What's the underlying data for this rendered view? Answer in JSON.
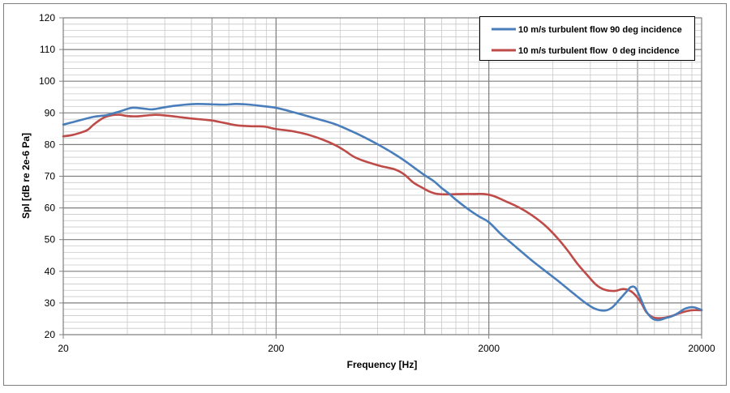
{
  "chart_data": {
    "type": "line",
    "title": "",
    "xlabel": "Frequency [Hz]",
    "ylabel": "Spl [dB re 2e-6 Pa]",
    "x_scale": "log",
    "xlim": [
      20,
      20000
    ],
    "ylim": [
      20,
      120
    ],
    "x_tick_labels": [
      "20",
      "200",
      "2000",
      "20000"
    ],
    "x_ticks": [
      20,
      200,
      2000,
      20000
    ],
    "y_ticks": [
      20,
      30,
      40,
      50,
      60,
      70,
      80,
      90,
      100,
      110,
      120
    ],
    "grid": true,
    "legend_position": "top-right",
    "series": [
      {
        "name": "10 m/s turbulent flow 90 deg incidence",
        "color": "#4a7ebb",
        "points": [
          [
            20,
            86.3
          ],
          [
            22,
            87
          ],
          [
            25,
            88
          ],
          [
            28,
            88.8
          ],
          [
            32,
            89.3
          ],
          [
            37,
            90.5
          ],
          [
            42,
            91.6
          ],
          [
            47,
            91.4
          ],
          [
            52,
            91.1
          ],
          [
            58,
            91.6
          ],
          [
            66,
            92.2
          ],
          [
            75,
            92.6
          ],
          [
            85,
            92.8
          ],
          [
            100,
            92.7
          ],
          [
            115,
            92.6
          ],
          [
            130,
            92.8
          ],
          [
            150,
            92.6
          ],
          [
            175,
            92.1
          ],
          [
            200,
            91.6
          ],
          [
            230,
            90.6
          ],
          [
            270,
            89.3
          ],
          [
            320,
            87.9
          ],
          [
            380,
            86.4
          ],
          [
            450,
            84.3
          ],
          [
            520,
            82.3
          ],
          [
            600,
            80.1
          ],
          [
            700,
            77.5
          ],
          [
            800,
            75
          ],
          [
            900,
            72.5
          ],
          [
            1000,
            70.3
          ],
          [
            1100,
            68.5
          ],
          [
            1200,
            66.3
          ],
          [
            1300,
            64.5
          ],
          [
            1400,
            62.6
          ],
          [
            1600,
            59.6
          ],
          [
            1800,
            57.3
          ],
          [
            2000,
            55.5
          ],
          [
            2300,
            51.5
          ],
          [
            2700,
            47.5
          ],
          [
            3200,
            43.3
          ],
          [
            3700,
            40
          ],
          [
            4300,
            36.6
          ],
          [
            5000,
            33
          ],
          [
            5700,
            30
          ],
          [
            6300,
            28.2
          ],
          [
            7000,
            27.6
          ],
          [
            7600,
            28.6
          ],
          [
            8200,
            31
          ],
          [
            8800,
            33.3
          ],
          [
            9300,
            35
          ],
          [
            9800,
            34.7
          ],
          [
            10400,
            31
          ],
          [
            11000,
            27.3
          ],
          [
            11800,
            25
          ],
          [
            12600,
            24.6
          ],
          [
            13500,
            25.2
          ],
          [
            14500,
            25.8
          ],
          [
            15500,
            26.8
          ],
          [
            16500,
            28
          ],
          [
            17500,
            28.6
          ],
          [
            18500,
            28.6
          ],
          [
            20000,
            27.8
          ]
        ]
      },
      {
        "name": "10 m/s turbulent flow  0 deg incidence",
        "color": "#be4b48",
        "points": [
          [
            20,
            82.6
          ],
          [
            22,
            83
          ],
          [
            24,
            83.7
          ],
          [
            26,
            84.6
          ],
          [
            28,
            86.5
          ],
          [
            31,
            88.5
          ],
          [
            34,
            89.3
          ],
          [
            37,
            89.4
          ],
          [
            40,
            89
          ],
          [
            44,
            88.9
          ],
          [
            48,
            89.1
          ],
          [
            54,
            89.4
          ],
          [
            60,
            89.2
          ],
          [
            68,
            88.8
          ],
          [
            78,
            88.3
          ],
          [
            90,
            87.9
          ],
          [
            100,
            87.6
          ],
          [
            115,
            86.8
          ],
          [
            130,
            86.1
          ],
          [
            150,
            85.8
          ],
          [
            175,
            85.7
          ],
          [
            200,
            84.9
          ],
          [
            240,
            84.2
          ],
          [
            280,
            83.2
          ],
          [
            330,
            81.6
          ],
          [
            380,
            79.8
          ],
          [
            420,
            78.1
          ],
          [
            460,
            76.3
          ],
          [
            500,
            75.2
          ],
          [
            560,
            74.1
          ],
          [
            630,
            73.1
          ],
          [
            720,
            72.2
          ],
          [
            800,
            70.6
          ],
          [
            880,
            68.1
          ],
          [
            960,
            66.6
          ],
          [
            1050,
            65.2
          ],
          [
            1150,
            64.4
          ],
          [
            1300,
            64.3
          ],
          [
            1500,
            64.4
          ],
          [
            1700,
            64.4
          ],
          [
            1900,
            64.4
          ],
          [
            2100,
            63.8
          ],
          [
            2400,
            62.1
          ],
          [
            2800,
            60
          ],
          [
            3200,
            57.6
          ],
          [
            3700,
            54.3
          ],
          [
            4200,
            50.5
          ],
          [
            4700,
            46.5
          ],
          [
            5200,
            42.5
          ],
          [
            5800,
            38.8
          ],
          [
            6400,
            35.7
          ],
          [
            7000,
            34.2
          ],
          [
            7800,
            33.8
          ],
          [
            8600,
            34.4
          ],
          [
            9400,
            33.5
          ],
          [
            10300,
            30.5
          ],
          [
            11000,
            27.1
          ],
          [
            11800,
            25.5
          ],
          [
            12600,
            25.2
          ],
          [
            13500,
            25.4
          ],
          [
            14500,
            25.9
          ],
          [
            15500,
            26.6
          ],
          [
            16500,
            27.2
          ],
          [
            18000,
            27.7
          ],
          [
            20000,
            27.7
          ]
        ]
      }
    ]
  }
}
